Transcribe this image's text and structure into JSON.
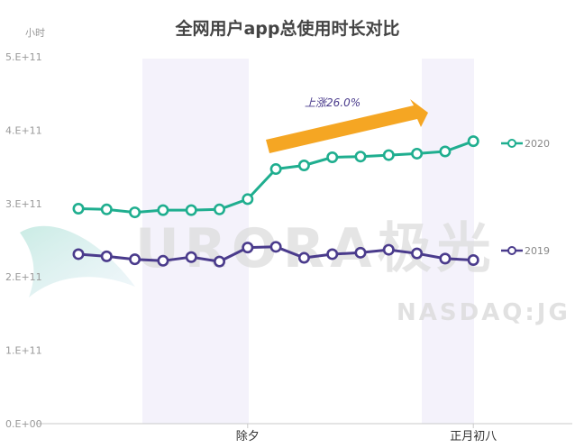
{
  "chart_data": {
    "type": "line",
    "title": "全网用户app总使用时长对比",
    "ylabel": "小时",
    "xlabel": "",
    "ylim": [
      0,
      500000000000
    ],
    "y_ticks": [
      {
        "value": 0,
        "label": "0.E+00"
      },
      {
        "value": 100000000000,
        "label": "1.E+11"
      },
      {
        "value": 200000000000,
        "label": "2.E+11"
      },
      {
        "value": 300000000000,
        "label": "3.E+11"
      },
      {
        "value": 400000000000,
        "label": "4.E+11"
      },
      {
        "value": 500000000000,
        "label": "5.E+11"
      }
    ],
    "x_tick_labels": [
      {
        "index": 6,
        "label": "除夕"
      },
      {
        "index": 14,
        "label": "正月初八"
      }
    ],
    "num_points": 15,
    "series": [
      {
        "name": "2020",
        "color": "#1fae8f",
        "values": [
          293000000000,
          292000000000,
          288000000000,
          291000000000,
          291000000000,
          292000000000,
          306000000000,
          347000000000,
          352000000000,
          363000000000,
          364000000000,
          366000000000,
          368000000000,
          371000000000,
          385000000000
        ]
      },
      {
        "name": "2019",
        "color": "#4a3b8c",
        "values": [
          231000000000,
          228000000000,
          224000000000,
          222000000000,
          227000000000,
          221000000000,
          240000000000,
          241000000000,
          226000000000,
          231000000000,
          233000000000,
          237000000000,
          232000000000,
          225000000000,
          223000000000
        ]
      }
    ],
    "annotation": {
      "text": "上涨26.0%",
      "arrow_color": "#f5a623"
    },
    "grid": false,
    "legend_position": "right"
  },
  "watermark": {
    "brand": "URORA极光",
    "sub": "NASDAQ:JG"
  }
}
